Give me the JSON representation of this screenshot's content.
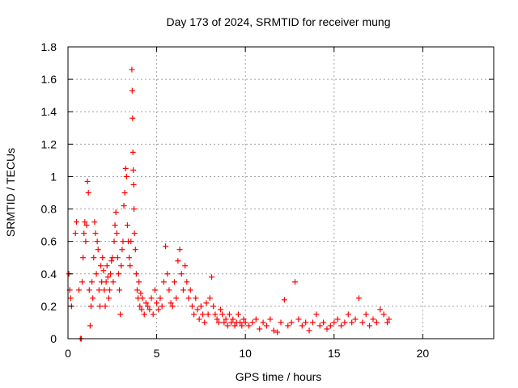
{
  "chart_data": {
    "type": "scatter",
    "title": "Day 173 of 2024, SRMTID for receiver mung",
    "xlabel": "GPS time / hours",
    "ylabel": "SRMTID / TECUs",
    "xlim": [
      0,
      24
    ],
    "ylim": [
      0,
      1.8
    ],
    "xticks": [
      0,
      5,
      10,
      15,
      20
    ],
    "xtick_labels": [
      "0",
      "5",
      "10",
      "15",
      "20"
    ],
    "yticks": [
      0,
      0.2,
      0.4,
      0.6,
      0.8,
      1.0,
      1.2,
      1.4,
      1.6,
      1.8
    ],
    "ytick_labels": [
      "0",
      "0.2",
      "0.4",
      "0.6",
      "0.8",
      "1",
      "1.2",
      "1.4",
      "1.6",
      "1.8"
    ],
    "grid": true,
    "marker": "+",
    "color": "#ff0000",
    "series": [
      {
        "name": "SRMTID",
        "x": [
          0.05,
          0.1,
          0.15,
          0.2,
          0.7,
          0.75,
          0.8,
          0.85,
          0.9,
          0.95,
          1.0,
          1.05,
          1.1,
          1.15,
          1.2,
          1.25,
          1.3,
          1.35,
          1.4,
          1.45,
          1.5,
          1.55,
          1.6,
          1.65,
          1.7,
          1.75,
          1.8,
          1.85,
          1.9,
          1.95,
          2.0,
          2.05,
          2.1,
          2.15,
          2.2,
          2.25,
          2.3,
          2.35,
          2.4,
          2.45,
          2.5,
          2.55,
          2.6,
          2.65,
          2.7,
          2.75,
          2.8,
          2.85,
          2.9,
          2.95,
          3.0,
          3.05,
          3.1,
          3.15,
          3.2,
          3.25,
          3.3,
          3.35,
          3.4,
          3.45,
          3.5,
          3.55,
          3.6,
          3.62,
          3.64,
          3.66,
          3.68,
          3.7,
          3.72,
          3.75,
          3.8,
          3.85,
          3.9,
          3.95,
          4.0,
          4.05,
          4.1,
          4.15,
          4.2,
          4.3,
          4.4,
          4.5,
          4.6,
          4.7,
          4.8,
          4.9,
          5.0,
          5.1,
          5.2,
          5.3,
          5.4,
          5.5,
          5.6,
          5.7,
          5.8,
          5.9,
          6.0,
          6.1,
          6.2,
          6.3,
          6.4,
          6.5,
          6.6,
          6.7,
          6.8,
          6.9,
          7.0,
          7.1,
          7.2,
          7.3,
          7.4,
          7.5,
          7.6,
          7.7,
          7.8,
          7.9,
          8.0,
          8.1,
          8.2,
          8.3,
          8.4,
          8.5,
          8.6,
          8.7,
          8.8,
          8.9,
          9.0,
          9.1,
          9.2,
          9.3,
          9.4,
          9.5,
          9.6,
          9.7,
          9.8,
          9.9,
          10.0,
          10.2,
          10.4,
          10.6,
          10.8,
          11.0,
          11.2,
          11.4,
          11.6,
          11.8,
          12.0,
          12.2,
          12.4,
          12.6,
          12.8,
          13.0,
          13.2,
          13.4,
          13.6,
          13.8,
          14.0,
          14.2,
          14.4,
          14.6,
          14.8,
          15.0,
          15.2,
          15.4,
          15.6,
          15.8,
          16.0,
          16.2,
          16.4,
          16.6,
          16.8,
          17.0,
          17.2,
          17.4,
          17.6,
          17.8,
          18.0,
          18.1,
          0.42,
          0.48,
          0.62
        ],
        "y": [
          0.4,
          0.3,
          0.25,
          0.2,
          0.0,
          0.0,
          0.35,
          0.5,
          0.65,
          0.72,
          0.6,
          0.7,
          0.97,
          0.9,
          0.3,
          0.08,
          0.2,
          0.35,
          0.25,
          0.5,
          0.72,
          0.65,
          0.4,
          0.6,
          0.55,
          0.3,
          0.2,
          0.45,
          0.35,
          0.5,
          0.42,
          0.3,
          0.2,
          0.35,
          0.45,
          0.38,
          0.25,
          0.3,
          0.4,
          0.48,
          0.5,
          0.35,
          0.6,
          0.7,
          0.78,
          0.65,
          0.5,
          0.4,
          0.3,
          0.15,
          0.45,
          0.55,
          0.6,
          0.82,
          0.9,
          1.05,
          1.0,
          0.7,
          0.6,
          0.5,
          0.45,
          0.6,
          1.66,
          1.53,
          1.36,
          1.15,
          1.04,
          0.95,
          0.8,
          0.65,
          0.55,
          0.4,
          0.3,
          0.25,
          0.35,
          0.2,
          0.28,
          0.18,
          0.25,
          0.15,
          0.22,
          0.2,
          0.18,
          0.25,
          0.15,
          0.3,
          0.22,
          0.18,
          0.25,
          0.2,
          0.35,
          0.57,
          0.4,
          0.3,
          0.22,
          0.2,
          0.35,
          0.25,
          0.48,
          0.55,
          0.4,
          0.3,
          0.45,
          0.35,
          0.25,
          0.3,
          0.2,
          0.15,
          0.25,
          0.18,
          0.12,
          0.2,
          0.15,
          0.1,
          0.22,
          0.15,
          0.25,
          0.38,
          0.2,
          0.15,
          0.12,
          0.1,
          0.18,
          0.15,
          0.1,
          0.12,
          0.08,
          0.15,
          0.1,
          0.12,
          0.08,
          0.1,
          0.15,
          0.1,
          0.08,
          0.12,
          0.1,
          0.08,
          0.1,
          0.12,
          0.06,
          0.1,
          0.08,
          0.12,
          0.05,
          0.04,
          0.1,
          0.24,
          0.08,
          0.1,
          0.35,
          0.12,
          0.08,
          0.1,
          0.05,
          0.1,
          0.15,
          0.08,
          0.1,
          0.06,
          0.08,
          0.1,
          0.12,
          0.08,
          0.1,
          0.15,
          0.1,
          0.12,
          0.25,
          0.1,
          0.15,
          0.08,
          0.12,
          0.1,
          0.18,
          0.15,
          0.1,
          0.12,
          0.65,
          0.72,
          0.3
        ],
        "point_count_note": ""
      }
    ]
  }
}
